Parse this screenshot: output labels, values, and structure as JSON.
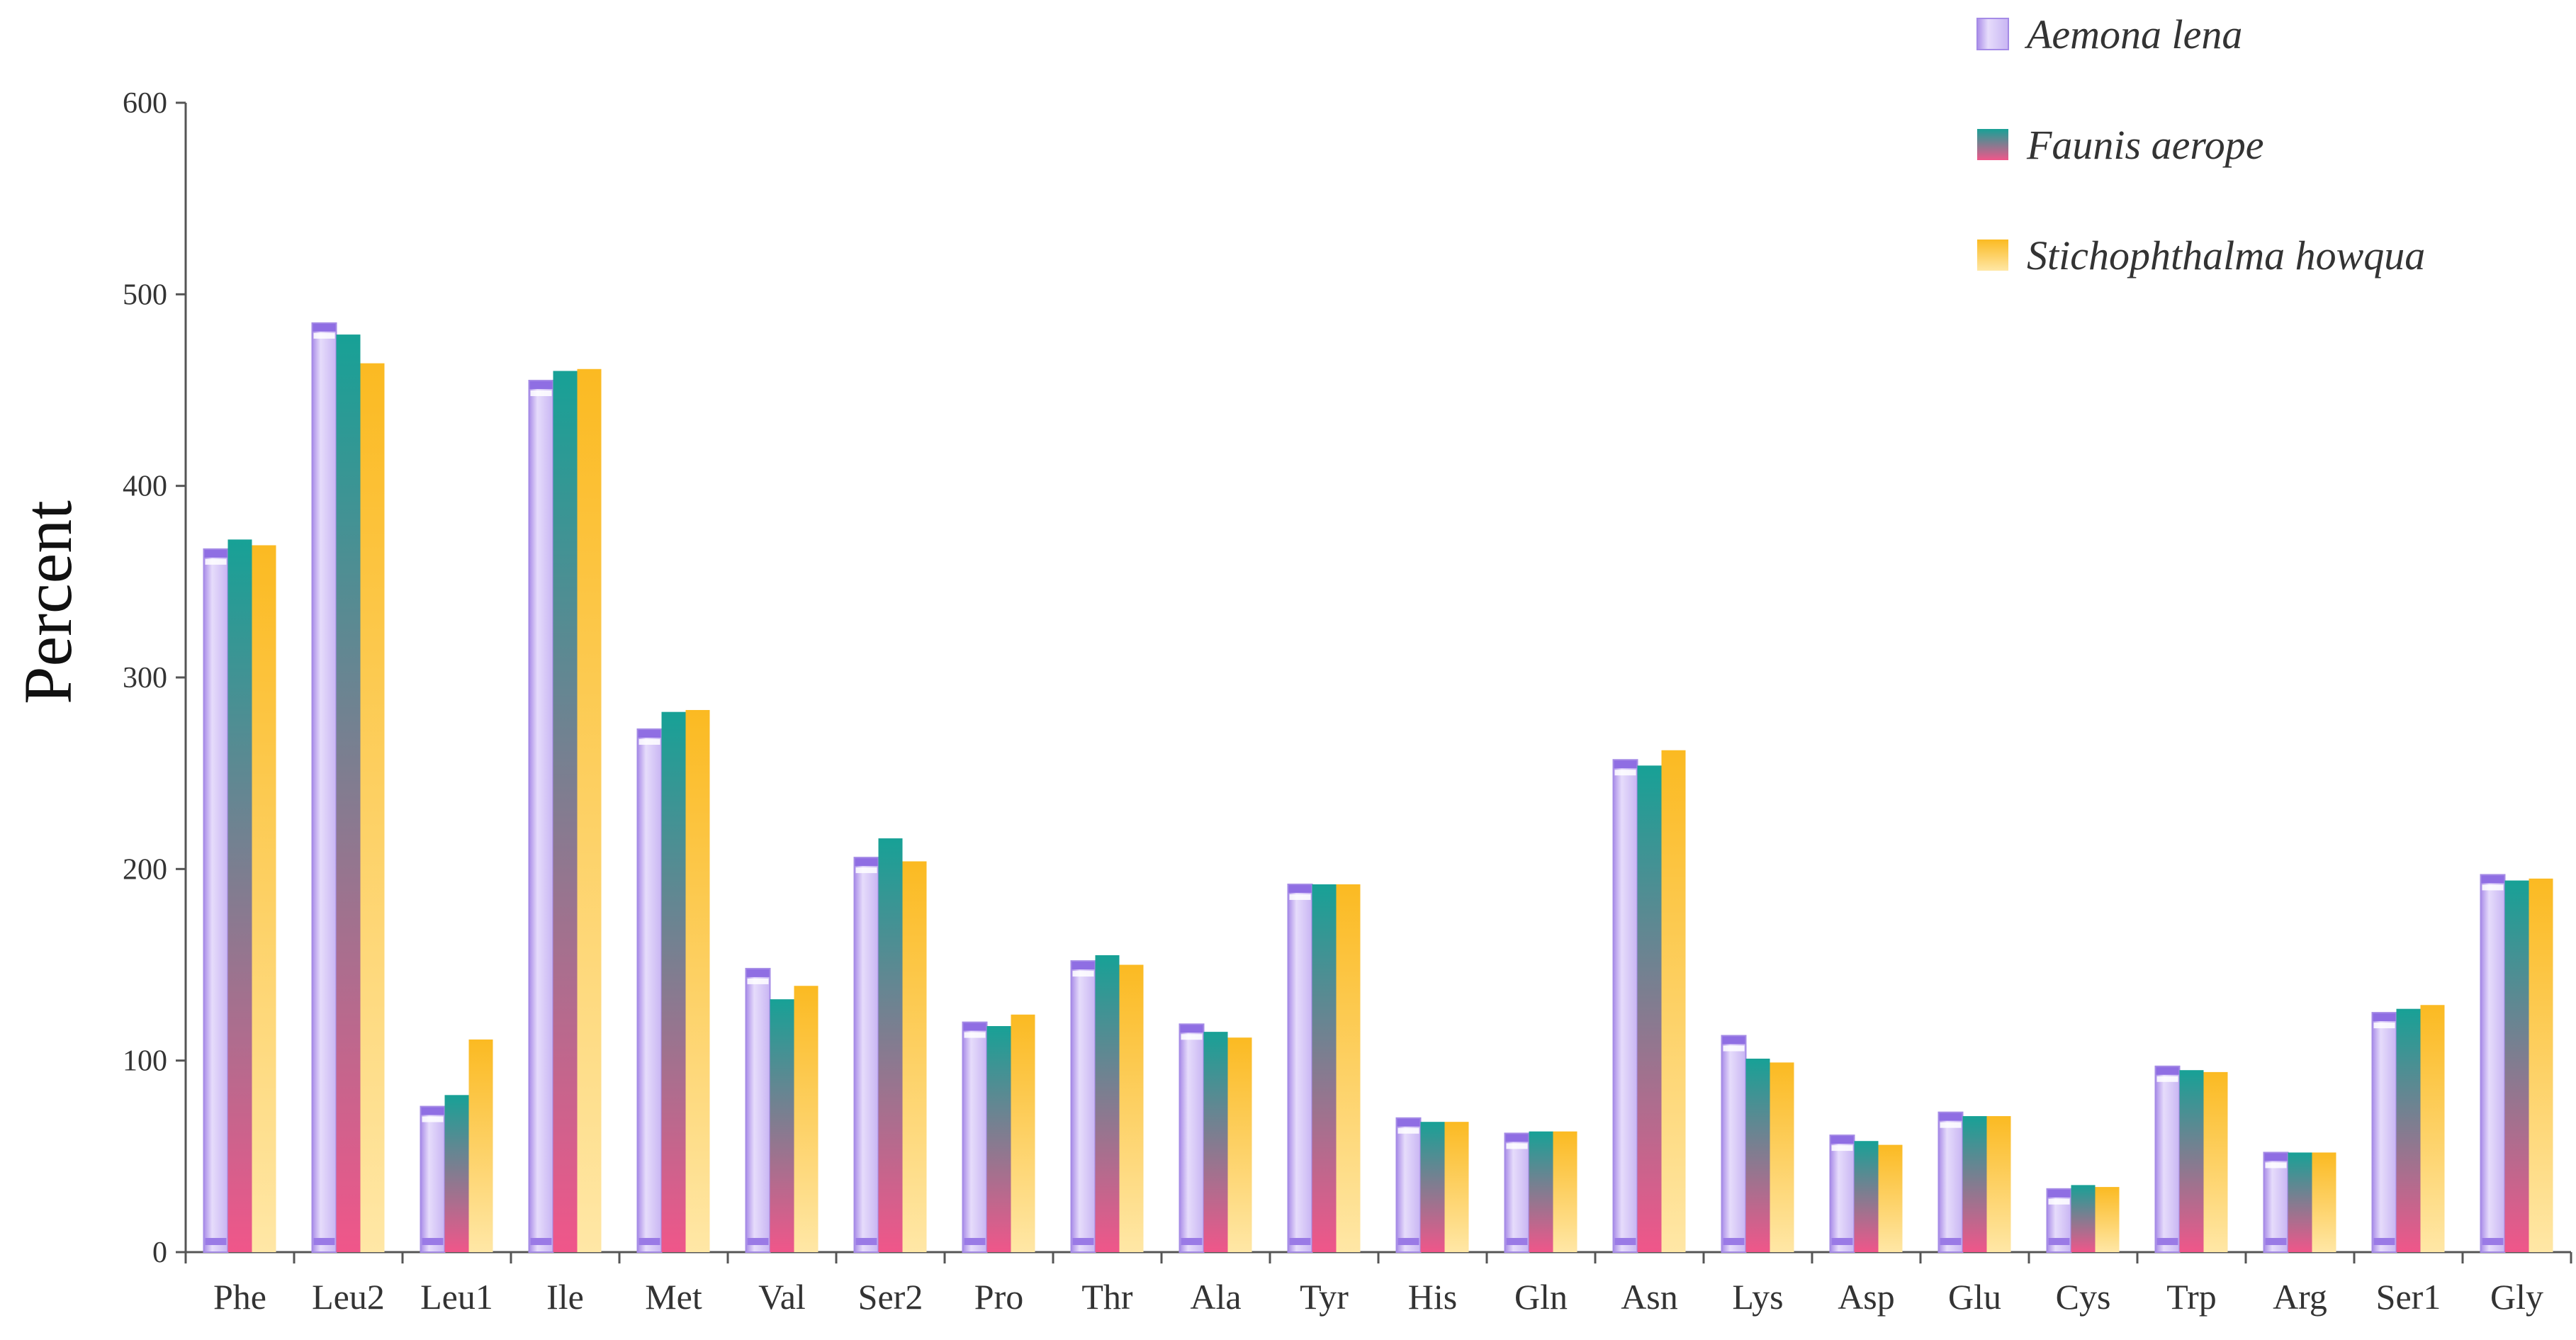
{
  "chart_data": {
    "type": "bar",
    "title": "",
    "xlabel": "",
    "ylabel": "Percent",
    "ylim": [
      0,
      600
    ],
    "yticks": [
      0,
      100,
      200,
      300,
      400,
      500,
      600
    ],
    "grid": false,
    "legend_position": "top-right",
    "categories": [
      "Phe",
      "Leu2",
      "Leu1",
      "Ile",
      "Met",
      "Val",
      "Ser2",
      "Pro",
      "Thr",
      "Ala",
      "Tyr",
      "His",
      "Gln",
      "Asn",
      "Lys",
      "Asp",
      "Glu",
      "Cys",
      "Trp",
      "Arg",
      "Ser1",
      "Gly"
    ],
    "series": [
      {
        "name": "Aemona lena",
        "color": "#b9a0ef",
        "values": [
          367,
          485,
          76,
          455,
          273,
          148,
          206,
          120,
          152,
          119,
          192,
          70,
          62,
          257,
          113,
          61,
          73,
          33,
          97,
          52,
          125,
          197
        ]
      },
      {
        "name": "Faunis aerope",
        "color": "#1e9e94",
        "color_bottom": "#ea5a8c",
        "values": [
          372,
          479,
          82,
          460,
          282,
          132,
          216,
          118,
          155,
          115,
          192,
          68,
          63,
          254,
          101,
          58,
          71,
          35,
          95,
          52,
          127,
          194
        ]
      },
      {
        "name": "Stichophthalma howqua",
        "color": "#fcbe2e",
        "color_bottom": "#ffe39a",
        "values": [
          369,
          464,
          111,
          461,
          283,
          139,
          204,
          124,
          150,
          112,
          192,
          68,
          63,
          262,
          99,
          56,
          71,
          34,
          94,
          52,
          129,
          195
        ]
      }
    ]
  }
}
